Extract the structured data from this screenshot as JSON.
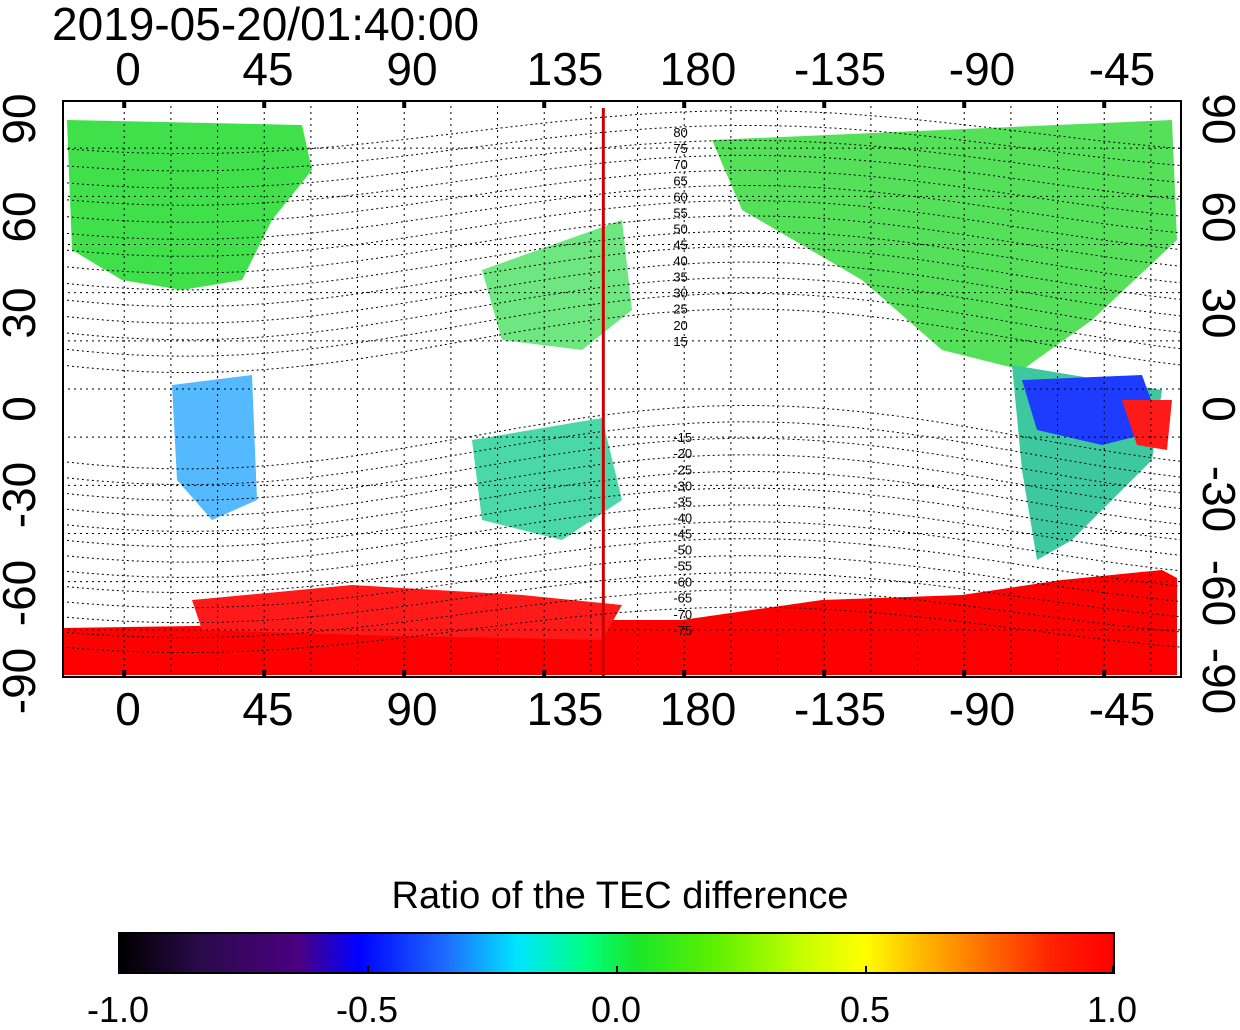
{
  "title": "2019-05-20/01:40:00",
  "colors": {
    "background": "#ffffff",
    "grid": "#000000",
    "meridian_marker": "#cc0000",
    "land_green": "#33e05a",
    "positive_red": "#ff0000",
    "negative_blue": "#1e3cff"
  },
  "axes": {
    "lon_ticks": [
      "0",
      "45",
      "90",
      "135",
      "180",
      "-135",
      "-90",
      "-45"
    ],
    "lat_ticks_left": [
      "90",
      "60",
      "30",
      "0",
      "-30",
      "-60",
      "-90"
    ],
    "lat_ticks_right": [
      "90",
      "60",
      "30",
      "0",
      "-30",
      "-60",
      "-90"
    ],
    "xlim": [
      -20,
      340
    ],
    "ylim": [
      -90,
      90
    ],
    "grid": "dotted"
  },
  "map": {
    "meridian_line_lon": 154,
    "contour_labels": [
      "80",
      "75",
      "70",
      "65",
      "60",
      "55",
      "50",
      "45",
      "40",
      "35",
      "30",
      "25",
      "20",
      "15",
      "-15",
      "-20",
      "-25",
      "-30",
      "-35",
      "-40",
      "-45",
      "-50",
      "-55",
      "-60",
      "-65",
      "-70",
      "-75"
    ]
  },
  "colorbar": {
    "title": "Ratio of the TEC difference",
    "min": -1.0,
    "max": 1.0,
    "tick_labels": [
      "-1.0",
      "-0.5",
      "0.0",
      "0.5",
      "1.0"
    ]
  }
}
